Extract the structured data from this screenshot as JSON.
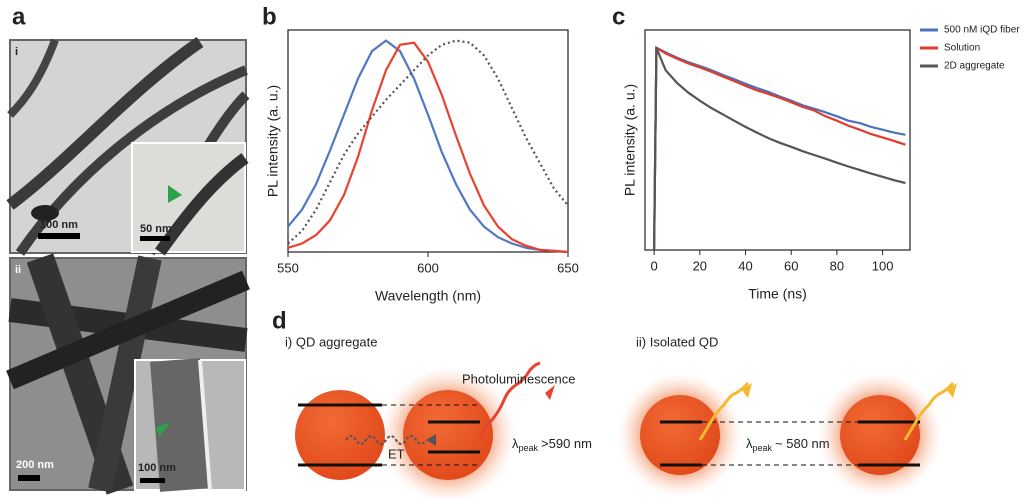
{
  "panels": {
    "a": "a",
    "b": "b",
    "c": "c",
    "d": "d"
  },
  "images": {
    "i": "i",
    "ii": "ii",
    "scale_i": "100 nm",
    "scale_i_inset": "50 nm",
    "scale_ii": "200 nm",
    "scale_ii_inset": "100 nm"
  },
  "chart_data": [
    {
      "type": "line",
      "xlabel": "Wavelength (nm)",
      "ylabel": "PL intensity (a. u.)",
      "x": [
        550,
        555,
        560,
        565,
        570,
        575,
        580,
        585,
        590,
        595,
        600,
        605,
        610,
        615,
        620,
        625,
        630,
        635,
        640,
        645,
        650
      ],
      "xlim": [
        550,
        650
      ],
      "xticks": [
        550,
        600,
        650
      ],
      "ylim": [
        0,
        1.05
      ],
      "log_scale": false,
      "series": [
        {
          "color": "#4f78c4",
          "style": "solid",
          "values": [
            0.12,
            0.2,
            0.32,
            0.48,
            0.65,
            0.82,
            0.95,
            1.0,
            0.95,
            0.82,
            0.65,
            0.47,
            0.32,
            0.2,
            0.12,
            0.07,
            0.04,
            0.02,
            0.01,
            0.005,
            0
          ]
        },
        {
          "color": "#e8432f",
          "style": "solid",
          "values": [
            0.02,
            0.04,
            0.08,
            0.15,
            0.27,
            0.45,
            0.67,
            0.86,
            0.98,
            0.99,
            0.9,
            0.74,
            0.55,
            0.37,
            0.22,
            0.12,
            0.06,
            0.03,
            0.01,
            0.005,
            0
          ]
        },
        {
          "color": "#555555",
          "style": "dotted",
          "values": [
            0.04,
            0.1,
            0.2,
            0.33,
            0.46,
            0.56,
            0.64,
            0.72,
            0.79,
            0.86,
            0.93,
            0.98,
            1.0,
            0.99,
            0.93,
            0.82,
            0.68,
            0.54,
            0.42,
            0.3,
            0.22
          ]
        }
      ]
    },
    {
      "type": "line",
      "xlabel": "Time (ns)",
      "ylabel": "PL intensity (a. u.)",
      "x": [
        0,
        1,
        5,
        10,
        15,
        20,
        25,
        30,
        35,
        40,
        45,
        50,
        55,
        60,
        65,
        70,
        75,
        80,
        85,
        90,
        95,
        100,
        105,
        110
      ],
      "xlim": [
        -4,
        112
      ],
      "xticks": [
        0,
        20,
        40,
        60,
        80,
        100
      ],
      "ylim": [
        0.01,
        1.5
      ],
      "log_scale": true,
      "series": [
        {
          "name": "500 nM iQD fiber",
          "color": "#4a72c0",
          "style": "solid",
          "values": [
            0.01,
            1,
            0.9,
            0.8,
            0.72,
            0.66,
            0.6,
            0.54,
            0.49,
            0.44,
            0.4,
            0.366,
            0.33,
            0.3,
            0.27,
            0.25,
            0.23,
            0.21,
            0.19,
            0.18,
            0.165,
            0.155,
            0.145,
            0.138
          ]
        },
        {
          "name": "Solution",
          "color": "#e23b2a",
          "style": "solid",
          "values": [
            0.01,
            1,
            0.88,
            0.78,
            0.7,
            0.64,
            0.58,
            0.52,
            0.47,
            0.42,
            0.38,
            0.35,
            0.32,
            0.29,
            0.26,
            0.24,
            0.21,
            0.19,
            0.17,
            0.155,
            0.14,
            0.13,
            0.12,
            0.11
          ]
        },
        {
          "name": "2D aggregate",
          "color": "#555555",
          "style": "solid",
          "values": [
            0.01,
            1,
            0.6,
            0.45,
            0.36,
            0.3,
            0.254,
            0.22,
            0.19,
            0.165,
            0.145,
            0.128,
            0.115,
            0.105,
            0.095,
            0.087,
            0.08,
            0.073,
            0.067,
            0.062,
            0.057,
            0.053,
            0.049,
            0.046
          ]
        }
      ]
    }
  ],
  "diagram": {
    "left_title": "i) QD aggregate",
    "right_title": "ii) Isolated QD",
    "emission": "Photoluminescence",
    "transfer": "ET",
    "left_peak": {
      "symbol": "λ",
      "subscript": "peak",
      "value": ">590 nm"
    },
    "right_peak": {
      "symbol": "λ",
      "subscript": "peak",
      "value": "~ 580 nm"
    }
  }
}
